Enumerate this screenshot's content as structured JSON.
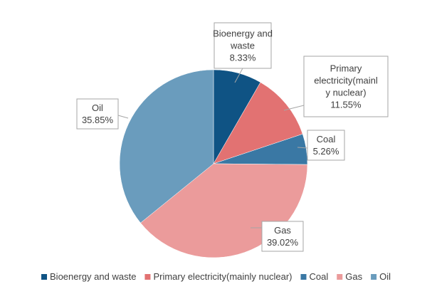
{
  "chart_data": {
    "type": "pie",
    "title": "",
    "start_angle_deg": 0,
    "direction": "clockwise",
    "legend_position": "bottom",
    "slices": [
      {
        "name": "Bioenergy and waste",
        "value": 8.33,
        "value_label": "8.33%",
        "label_lines": [
          "Bioenergy and",
          "waste",
          "8.33%"
        ],
        "color": "#0f5384"
      },
      {
        "name": "Primary electricity(mainly nuclear)",
        "value": 11.55,
        "value_label": "11.55%",
        "label_lines": [
          "Primary",
          "electricity(mainl",
          "y nuclear)",
          "11.55%"
        ],
        "color": "#e27272"
      },
      {
        "name": "Coal",
        "value": 5.26,
        "value_label": "5.26%",
        "label_lines": [
          "Coal",
          "5.26%"
        ],
        "color": "#3a78a4"
      },
      {
        "name": "Gas",
        "value": 39.02,
        "value_label": "39.02%",
        "label_lines": [
          "Gas",
          "39.02%"
        ],
        "color": "#eb9b9b"
      },
      {
        "name": "Oil",
        "value": 35.85,
        "value_label": "35.85%",
        "label_lines": [
          "Oil",
          "35.85%"
        ],
        "color": "#6a9cbd"
      }
    ]
  }
}
